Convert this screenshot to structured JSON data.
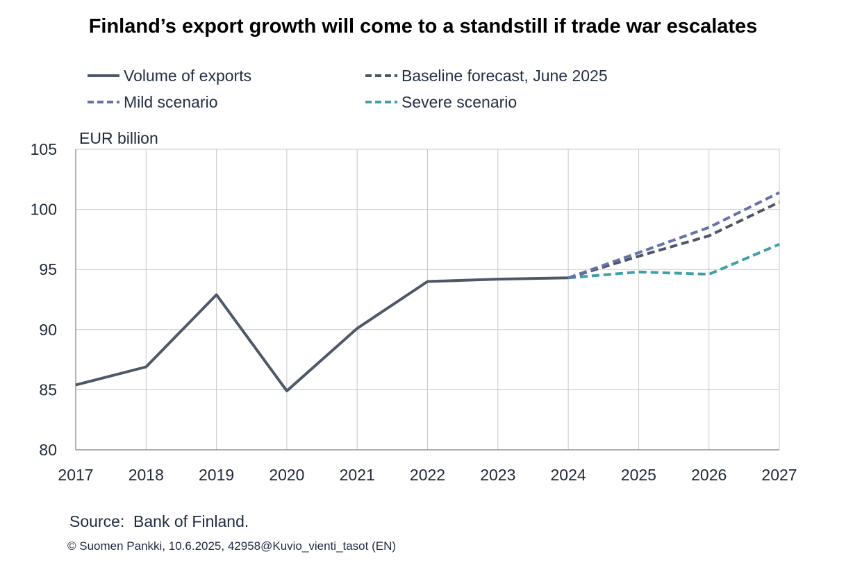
{
  "header": {
    "title": "Finland’s export growth will come to a standstill if trade war escalates"
  },
  "chart_data": {
    "type": "line",
    "title": "Finland’s export growth will come to a standstill if trade war escalates",
    "ylabel": "EUR billion",
    "xlabel": "",
    "ylim": [
      80,
      105
    ],
    "yticks": [
      80,
      85,
      90,
      95,
      100,
      105
    ],
    "x": [
      "2017",
      "2018",
      "2019",
      "2020",
      "2021",
      "2022",
      "2023",
      "2024",
      "2025",
      "2026",
      "2027"
    ],
    "grid": true,
    "legend_position": "top",
    "series": [
      {
        "name": "Volume of exports",
        "style": "solid",
        "color": "#4e5868",
        "values": [
          85.4,
          86.9,
          92.9,
          84.9,
          90.1,
          94.0,
          94.2,
          94.3,
          null,
          null,
          null
        ]
      },
      {
        "name": "Baseline forecast, June 2025",
        "style": "dashed",
        "color": "#4f5568",
        "values": [
          null,
          null,
          null,
          null,
          null,
          null,
          null,
          94.3,
          96.1,
          97.8,
          100.6
        ]
      },
      {
        "name": "Mild scenario",
        "style": "dashed",
        "color": "#6474a8",
        "values": [
          null,
          null,
          null,
          null,
          null,
          null,
          null,
          94.3,
          96.4,
          98.5,
          101.4
        ]
      },
      {
        "name": "Severe scenario",
        "style": "dashed",
        "color": "#3fa0aa",
        "values": [
          null,
          null,
          null,
          null,
          null,
          null,
          null,
          94.3,
          94.8,
          94.6,
          97.1
        ]
      }
    ]
  },
  "footer": {
    "source": "Source:  Bank of Finland.",
    "copyright": "© Suomen Pankki, 10.6.2025, 42958@Kuvio_vienti_tasot (EN)"
  }
}
